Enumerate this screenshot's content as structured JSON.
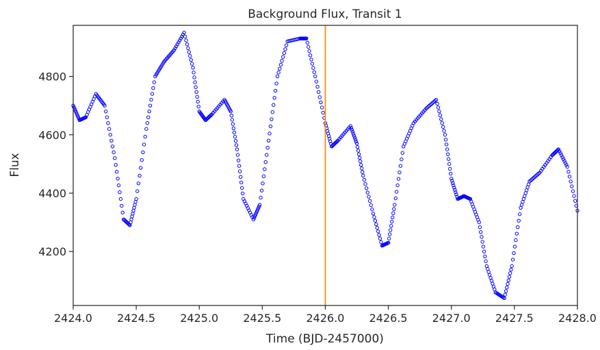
{
  "chart_data": {
    "type": "scatter",
    "title": "Background Flux, Transit 1",
    "xlabel": "Time (BJD-2457000)",
    "ylabel": "Flux",
    "xlim": [
      2424.0,
      2428.0
    ],
    "ylim": [
      4015,
      4975
    ],
    "x_ticks": [
      2424.0,
      2424.5,
      2425.0,
      2425.5,
      2426.0,
      2426.5,
      2427.0,
      2427.5,
      2428.0
    ],
    "x_tick_labels": [
      "2424.0",
      "2424.5",
      "2425.0",
      "2425.5",
      "2426.0",
      "2426.5",
      "2427.0",
      "2427.5",
      "2428.0"
    ],
    "y_ticks": [
      4200,
      4400,
      4600,
      4800
    ],
    "y_tick_labels": [
      "4200",
      "4400",
      "4600",
      "4800"
    ],
    "grid": false,
    "marker_color": "#0000ff",
    "vline": {
      "x": 2426.0,
      "color": "#ff8c00"
    },
    "series": [
      {
        "points": [
          [
            2424.0,
            4700
          ],
          [
            2424.05,
            4650
          ],
          [
            2424.1,
            4660
          ],
          [
            2424.18,
            4740
          ],
          [
            2424.25,
            4700
          ],
          [
            2424.33,
            4520
          ],
          [
            2424.4,
            4310
          ],
          [
            2424.45,
            4290
          ],
          [
            2424.5,
            4380
          ],
          [
            2424.58,
            4620
          ],
          [
            2424.65,
            4800
          ],
          [
            2424.72,
            4850
          ],
          [
            2424.8,
            4890
          ],
          [
            2424.88,
            4950
          ],
          [
            2424.95,
            4830
          ],
          [
            2425.0,
            4680
          ],
          [
            2425.05,
            4650
          ],
          [
            2425.1,
            4670
          ],
          [
            2425.2,
            4720
          ],
          [
            2425.25,
            4680
          ],
          [
            2425.3,
            4550
          ],
          [
            2425.35,
            4380
          ],
          [
            2425.43,
            4310
          ],
          [
            2425.48,
            4360
          ],
          [
            2425.55,
            4580
          ],
          [
            2425.62,
            4800
          ],
          [
            2425.7,
            4920
          ],
          [
            2425.8,
            4930
          ],
          [
            2425.85,
            4930
          ],
          [
            2425.92,
            4800
          ],
          [
            2426.0,
            4640
          ],
          [
            2426.05,
            4560
          ],
          [
            2426.1,
            4580
          ],
          [
            2426.2,
            4630
          ],
          [
            2426.25,
            4570
          ],
          [
            2426.3,
            4460
          ],
          [
            2426.38,
            4330
          ],
          [
            2426.45,
            4220
          ],
          [
            2426.5,
            4230
          ],
          [
            2426.55,
            4360
          ],
          [
            2426.62,
            4560
          ],
          [
            2426.7,
            4640
          ],
          [
            2426.8,
            4690
          ],
          [
            2426.88,
            4720
          ],
          [
            2426.95,
            4600
          ],
          [
            2427.0,
            4450
          ],
          [
            2427.05,
            4380
          ],
          [
            2427.1,
            4390
          ],
          [
            2427.15,
            4380
          ],
          [
            2427.22,
            4300
          ],
          [
            2427.28,
            4150
          ],
          [
            2427.35,
            4060
          ],
          [
            2427.42,
            4040
          ],
          [
            2427.48,
            4150
          ],
          [
            2427.55,
            4350
          ],
          [
            2427.62,
            4440
          ],
          [
            2427.7,
            4470
          ],
          [
            2427.8,
            4530
          ],
          [
            2427.85,
            4550
          ],
          [
            2427.92,
            4490
          ],
          [
            2428.0,
            4340
          ]
        ]
      }
    ]
  }
}
